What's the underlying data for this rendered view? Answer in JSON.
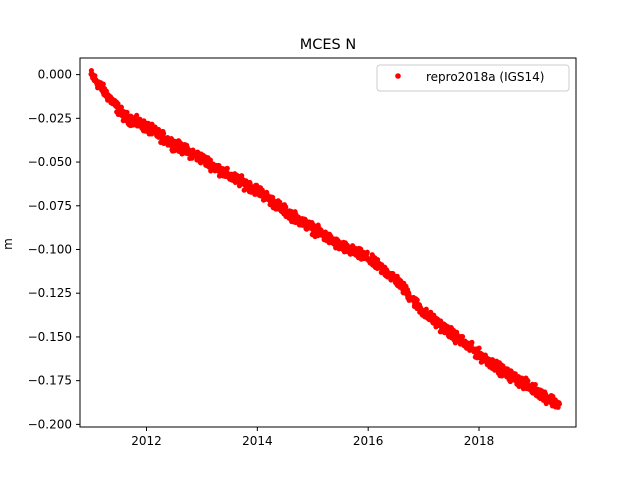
{
  "chart_data": {
    "type": "scatter",
    "title": "MCES N",
    "xlabel": "",
    "ylabel": "m",
    "xlim": [
      2010.8,
      2019.75
    ],
    "ylim": [
      -0.2015,
      0.0095
    ],
    "xticks": [
      2012,
      2014,
      2016,
      2018
    ],
    "xtick_labels": [
      "2012",
      "2014",
      "2016",
      "2018"
    ],
    "yticks": [
      0.0,
      -0.025,
      -0.05,
      -0.075,
      -0.1,
      -0.125,
      -0.15,
      -0.175,
      -0.2
    ],
    "ytick_labels": [
      "0.000",
      "−0.025",
      "−0.050",
      "−0.075",
      "−0.100",
      "−0.125",
      "−0.150",
      "−0.175",
      "−0.200"
    ],
    "grid": false,
    "legend_position": "top-right",
    "series": [
      {
        "name": "repro2018a (IGS14)",
        "color": "#ff0000",
        "trend_knots": {
          "x": [
            2011.0,
            2011.3,
            2011.6,
            2012.0,
            2012.5,
            2013.0,
            2013.5,
            2014.0,
            2014.5,
            2015.0,
            2015.5,
            2016.0,
            2016.5,
            2017.0,
            2017.5,
            2018.0,
            2018.5,
            2019.0,
            2019.45
          ],
          "y": [
            0.0,
            -0.012,
            -0.024,
            -0.03,
            -0.04,
            -0.048,
            -0.058,
            -0.066,
            -0.078,
            -0.088,
            -0.098,
            -0.105,
            -0.117,
            -0.136,
            -0.148,
            -0.16,
            -0.171,
            -0.18,
            -0.189
          ]
        },
        "x_range": [
          2011.0,
          2019.45
        ],
        "scatter_amplitude": 0.0025
      }
    ]
  }
}
